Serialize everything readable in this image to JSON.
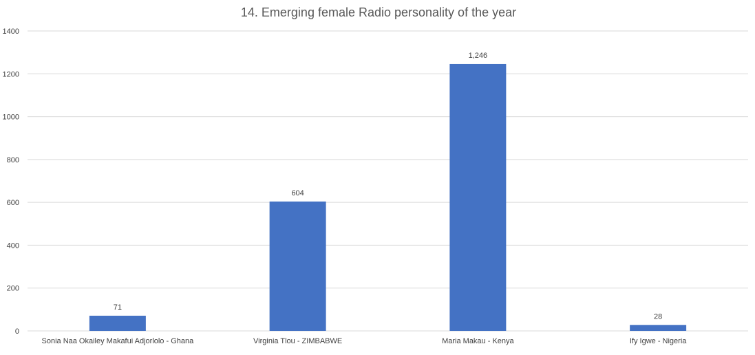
{
  "chart_data": {
    "type": "bar",
    "title": "14. Emerging female Radio personality of the year",
    "categories": [
      "Sonia Naa Okailey Makafui Adjorlolo - Ghana",
      "Virginia Tlou - ZIMBABWE",
      "Maria Makau - Kenya",
      "Ify Igwe - Nigeria"
    ],
    "values": [
      71,
      604,
      1246,
      28
    ],
    "data_labels": [
      "71",
      "604",
      "1,246",
      "28"
    ],
    "xlabel": "",
    "ylabel": "",
    "ylim": [
      0,
      1400
    ],
    "yticks": [
      "0",
      "200",
      "400",
      "600",
      "800",
      "1000",
      "1200",
      "1400"
    ],
    "grid": true,
    "legend": "none",
    "bar_color": "#4472C4",
    "grid_color": "#D9D9D9"
  }
}
